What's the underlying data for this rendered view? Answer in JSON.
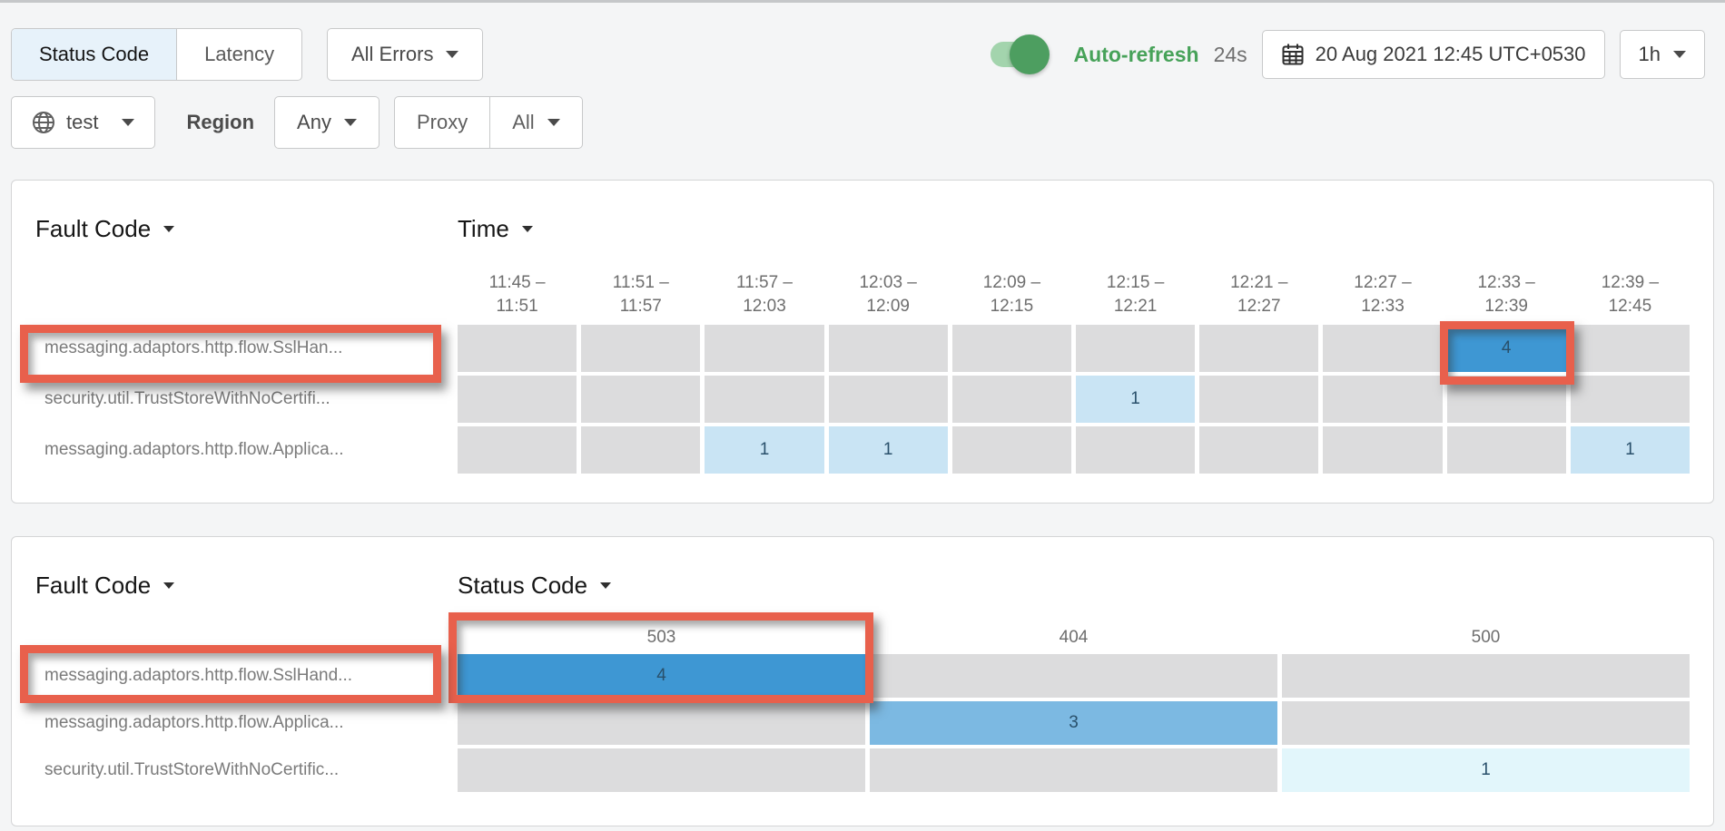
{
  "toolbar": {
    "view_tabs": [
      {
        "label": "Status Code",
        "selected": true
      },
      {
        "label": "Latency",
        "selected": false
      }
    ],
    "error_filter_label": "All Errors",
    "auto_refresh_label": "Auto-refresh",
    "auto_refresh_enabled": true,
    "auto_refresh_countdown": "24s",
    "datetime_label": "20 Aug 2021 12:45 UTC+0530",
    "duration_label": "1h",
    "environment_label": "test",
    "region_label": "Region",
    "region_value": "Any",
    "proxy_label": "Proxy",
    "proxy_value": "All"
  },
  "panels": [
    {
      "row_dimension": "Fault Code",
      "col_dimension": "Time",
      "columns": [
        [
          "11:45 –",
          "11:51"
        ],
        [
          "11:51 –",
          "11:57"
        ],
        [
          "11:57 –",
          "12:03"
        ],
        [
          "12:03 –",
          "12:09"
        ],
        [
          "12:09 –",
          "12:15"
        ],
        [
          "12:15 –",
          "12:21"
        ],
        [
          "12:21 –",
          "12:27"
        ],
        [
          "12:27 –",
          "12:33"
        ],
        [
          "12:33 –",
          "12:39"
        ],
        [
          "12:39 –",
          "12:45"
        ]
      ],
      "rows": [
        {
          "label": "messaging.adaptors.http.flow.SslHan...",
          "annotated": true,
          "cells": [
            "",
            "",
            "",
            "",
            "",
            "",
            "",
            "",
            {
              "v": "4",
              "l": "high",
              "annotated": true
            },
            ""
          ]
        },
        {
          "label": "security.util.TrustStoreWithNoCertifi...",
          "annotated": false,
          "cells": [
            "",
            "",
            "",
            "",
            "",
            {
              "v": "1",
              "l": "low"
            },
            "",
            "",
            "",
            ""
          ]
        },
        {
          "label": "messaging.adaptors.http.flow.Applica...",
          "annotated": false,
          "cells": [
            "",
            "",
            {
              "v": "1",
              "l": "low"
            },
            {
              "v": "1",
              "l": "low"
            },
            "",
            "",
            "",
            "",
            "",
            {
              "v": "1",
              "l": "low"
            }
          ]
        }
      ]
    },
    {
      "row_dimension": "Fault Code",
      "col_dimension": "Status Code",
      "columns": [
        "503",
        "404",
        "500"
      ],
      "rows": [
        {
          "label": "messaging.adaptors.http.flow.SslHand...",
          "annotated": true,
          "cells": [
            {
              "v": "4",
              "l": "high",
              "annotated": true
            },
            "",
            ""
          ]
        },
        {
          "label": "messaging.adaptors.http.flow.Applica...",
          "annotated": false,
          "cells": [
            "",
            {
              "v": "3",
              "l": "mid"
            },
            ""
          ]
        },
        {
          "label": "security.util.TrustStoreWithNoCertific...",
          "annotated": false,
          "cells": [
            "",
            "",
            {
              "v": "1",
              "l": "faint"
            }
          ]
        }
      ]
    }
  ],
  "annotations": [
    "red box around fault code 'messaging.adaptors.http.flow.SslHan...' in Time panel",
    "red box around value 4 in time bucket 12:33 – 12:39",
    "red box around status code column 503 header and value 4",
    "red box around fault code 'messaging.adaptors.http.flow.SslHand...' in Status Code panel"
  ],
  "chart_data": [
    {
      "type": "heatmap",
      "title": "Fault Code × Time",
      "x_categories": [
        "11:45 – 11:51",
        "11:51 – 11:57",
        "11:57 – 12:03",
        "12:03 – 12:09",
        "12:09 – 12:15",
        "12:15 – 12:21",
        "12:21 – 12:27",
        "12:27 – 12:33",
        "12:33 – 12:39",
        "12:39 – 12:45"
      ],
      "y_categories": [
        "messaging.adaptors.http.flow.SslHan...",
        "security.util.TrustStoreWithNoCertifi...",
        "messaging.adaptors.http.flow.Applica..."
      ],
      "values": [
        [
          null,
          null,
          null,
          null,
          null,
          null,
          null,
          null,
          4,
          null
        ],
        [
          null,
          null,
          null,
          null,
          null,
          1,
          null,
          null,
          null,
          null
        ],
        [
          null,
          null,
          1,
          1,
          null,
          null,
          null,
          null,
          null,
          1
        ]
      ]
    },
    {
      "type": "heatmap",
      "title": "Fault Code × Status Code",
      "x_categories": [
        "503",
        "404",
        "500"
      ],
      "y_categories": [
        "messaging.adaptors.http.flow.SslHand...",
        "messaging.adaptors.http.flow.Applica...",
        "security.util.TrustStoreWithNoCertific..."
      ],
      "values": [
        [
          4,
          null,
          null
        ],
        [
          null,
          3,
          null
        ],
        [
          null,
          null,
          1
        ]
      ]
    }
  ],
  "colors": {
    "annotation_red": "#e8604c",
    "cell_empty": "#dcdcdd",
    "cell_low": "#c9e4f4",
    "cell_mid": "#7cb9e2",
    "cell_high": "#3e97d3",
    "cell_faint": "#e2f6fb",
    "selected_tab_bg": "#e7f2fa",
    "auto_refresh_green": "#47a259"
  }
}
